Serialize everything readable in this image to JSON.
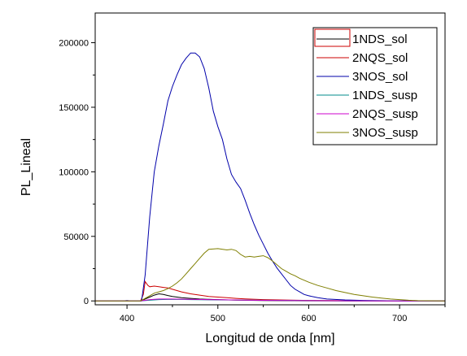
{
  "chart_data": {
    "type": "line",
    "title": "",
    "xlabel": "Longitud de onda [nm]",
    "ylabel": "PL_Lineal",
    "xlim": [
      365,
      750
    ],
    "ylim": [
      -3000,
      223000
    ],
    "x_ticks": [
      400,
      500,
      600,
      700
    ],
    "y_ticks": [
      0,
      50000,
      100000,
      150000,
      200000
    ],
    "x_tick_labels": [
      "400",
      "500",
      "600",
      "700"
    ],
    "y_tick_labels": [
      "0",
      "50000",
      "100000",
      "150000",
      "200000"
    ],
    "grid": false,
    "legend_position": "top-right",
    "series": [
      {
        "name": "1NDS_sol",
        "color": "#000000",
        "points": [
          [
            365,
            0
          ],
          [
            415,
            0
          ],
          [
            420,
            1500
          ],
          [
            425,
            3000
          ],
          [
            430,
            4500
          ],
          [
            435,
            5500
          ],
          [
            440,
            5000
          ],
          [
            445,
            4200
          ],
          [
            450,
            3500
          ],
          [
            460,
            2500
          ],
          [
            470,
            2000
          ],
          [
            480,
            1500
          ],
          [
            490,
            1200
          ],
          [
            500,
            1000
          ],
          [
            520,
            600
          ],
          [
            550,
            300
          ],
          [
            600,
            100
          ],
          [
            650,
            0
          ],
          [
            700,
            0
          ],
          [
            750,
            0
          ]
        ]
      },
      {
        "name": "2NQS_sol",
        "color": "#cc0000",
        "points": [
          [
            365,
            0
          ],
          [
            415,
            0
          ],
          [
            418,
            5000
          ],
          [
            420,
            15000
          ],
          [
            423,
            12000
          ],
          [
            425,
            11000
          ],
          [
            430,
            11500
          ],
          [
            435,
            11000
          ],
          [
            440,
            10500
          ],
          [
            445,
            10000
          ],
          [
            450,
            9000
          ],
          [
            460,
            7000
          ],
          [
            470,
            5500
          ],
          [
            480,
            4500
          ],
          [
            490,
            3500
          ],
          [
            500,
            3000
          ],
          [
            510,
            2500
          ],
          [
            520,
            2000
          ],
          [
            530,
            1600
          ],
          [
            550,
            1000
          ],
          [
            580,
            600
          ],
          [
            600,
            400
          ],
          [
            650,
            200
          ],
          [
            700,
            0
          ],
          [
            750,
            0
          ]
        ]
      },
      {
        "name": "3NOS_sol",
        "color": "#0000aa",
        "points": [
          [
            365,
            0
          ],
          [
            395,
            0
          ],
          [
            400,
            300
          ],
          [
            405,
            0
          ],
          [
            412,
            0
          ],
          [
            416,
            0
          ],
          [
            420,
            20000
          ],
          [
            425,
            65000
          ],
          [
            430,
            100000
          ],
          [
            435,
            120000
          ],
          [
            440,
            137000
          ],
          [
            445,
            155000
          ],
          [
            450,
            166000
          ],
          [
            455,
            175000
          ],
          [
            460,
            183000
          ],
          [
            465,
            188000
          ],
          [
            470,
            192000
          ],
          [
            475,
            192000
          ],
          [
            480,
            189000
          ],
          [
            485,
            180000
          ],
          [
            490,
            165000
          ],
          [
            495,
            147000
          ],
          [
            500,
            135000
          ],
          [
            505,
            125000
          ],
          [
            510,
            110000
          ],
          [
            515,
            98000
          ],
          [
            520,
            92000
          ],
          [
            525,
            87000
          ],
          [
            530,
            78000
          ],
          [
            535,
            68000
          ],
          [
            540,
            59000
          ],
          [
            545,
            51000
          ],
          [
            550,
            44000
          ],
          [
            555,
            37000
          ],
          [
            560,
            31000
          ],
          [
            565,
            25500
          ],
          [
            570,
            21000
          ],
          [
            575,
            16500
          ],
          [
            580,
            12000
          ],
          [
            585,
            9000
          ],
          [
            590,
            7000
          ],
          [
            595,
            5000
          ],
          [
            600,
            4000
          ],
          [
            610,
            2500
          ],
          [
            620,
            1500
          ],
          [
            640,
            800
          ],
          [
            660,
            400
          ],
          [
            680,
            200
          ],
          [
            700,
            0
          ],
          [
            750,
            0
          ]
        ]
      },
      {
        "name": "1NDS_susp",
        "color": "#008b8b",
        "points": [
          [
            365,
            0
          ],
          [
            415,
            0
          ],
          [
            425,
            500
          ],
          [
            435,
            1000
          ],
          [
            450,
            1200
          ],
          [
            470,
            1000
          ],
          [
            500,
            800
          ],
          [
            550,
            500
          ],
          [
            600,
            300
          ],
          [
            650,
            100
          ],
          [
            700,
            0
          ],
          [
            750,
            0
          ]
        ]
      },
      {
        "name": "2NQS_susp",
        "color": "#cc00cc",
        "points": [
          [
            365,
            0
          ],
          [
            415,
            0
          ],
          [
            425,
            1000
          ],
          [
            435,
            1500
          ],
          [
            450,
            1500
          ],
          [
            470,
            1200
          ],
          [
            500,
            900
          ],
          [
            530,
            600
          ],
          [
            560,
            400
          ],
          [
            600,
            200
          ],
          [
            650,
            100
          ],
          [
            700,
            0
          ],
          [
            750,
            0
          ]
        ]
      },
      {
        "name": "3NOS_susp",
        "color": "#7f7f00",
        "points": [
          [
            365,
            0
          ],
          [
            415,
            0
          ],
          [
            420,
            2000
          ],
          [
            425,
            4000
          ],
          [
            430,
            6000
          ],
          [
            435,
            7000
          ],
          [
            440,
            8000
          ],
          [
            445,
            9500
          ],
          [
            450,
            11500
          ],
          [
            455,
            14000
          ],
          [
            460,
            17000
          ],
          [
            465,
            21000
          ],
          [
            470,
            25000
          ],
          [
            475,
            29000
          ],
          [
            480,
            33000
          ],
          [
            485,
            37000
          ],
          [
            490,
            40000
          ],
          [
            500,
            40500
          ],
          [
            510,
            39500
          ],
          [
            515,
            40000
          ],
          [
            520,
            39000
          ],
          [
            525,
            36000
          ],
          [
            530,
            34000
          ],
          [
            535,
            34500
          ],
          [
            540,
            34000
          ],
          [
            545,
            34500
          ],
          [
            550,
            35000
          ],
          [
            555,
            33500
          ],
          [
            560,
            31000
          ],
          [
            565,
            28000
          ],
          [
            570,
            25000
          ],
          [
            575,
            23000
          ],
          [
            580,
            21000
          ],
          [
            585,
            19500
          ],
          [
            590,
            17500
          ],
          [
            595,
            16000
          ],
          [
            600,
            14500
          ],
          [
            610,
            12000
          ],
          [
            620,
            10000
          ],
          [
            630,
            8000
          ],
          [
            640,
            6500
          ],
          [
            650,
            5000
          ],
          [
            660,
            4000
          ],
          [
            670,
            3000
          ],
          [
            680,
            2200
          ],
          [
            690,
            1500
          ],
          [
            700,
            1000
          ],
          [
            710,
            500
          ],
          [
            720,
            200
          ],
          [
            750,
            0
          ]
        ]
      }
    ]
  }
}
